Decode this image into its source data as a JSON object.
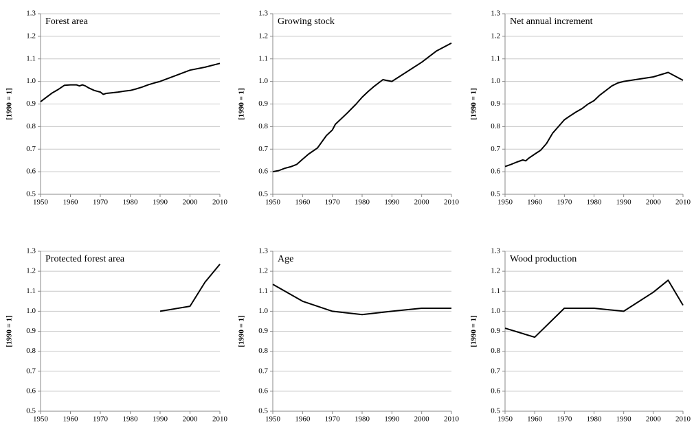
{
  "chart_data": [
    {
      "type": "line",
      "title": "Forest area",
      "ylabel": "[1990 = 1]",
      "color": "#000000",
      "grid": true,
      "x": [
        1950,
        1952,
        1954,
        1956,
        1958,
        1960,
        1962,
        1963,
        1964,
        1965,
        1966,
        1968,
        1970,
        1971,
        1972,
        1974,
        1976,
        1978,
        1980,
        1982,
        1984,
        1986,
        1988,
        1990,
        2000,
        2005,
        2010
      ],
      "values": [
        0.91,
        0.93,
        0.95,
        0.965,
        0.983,
        0.985,
        0.985,
        0.98,
        0.985,
        0.98,
        0.972,
        0.96,
        0.953,
        0.943,
        0.947,
        0.95,
        0.953,
        0.957,
        0.96,
        0.967,
        0.975,
        0.985,
        0.993,
        1.0,
        1.05,
        1.063,
        1.08
      ],
      "xlim": [
        1950,
        2010
      ],
      "ylim": [
        0.5,
        1.3
      ],
      "xticks": [
        1950,
        1960,
        1970,
        1980,
        1990,
        2000,
        2010
      ],
      "yticks": [
        0.5,
        0.6,
        0.7,
        0.8,
        0.9,
        {
          "value": 1,
          "label": "1.0"
        },
        1.1,
        1.2,
        1.3
      ]
    },
    {
      "type": "line",
      "title": "Growing stock",
      "ylabel": "[1990 = 1]",
      "color": "#000000",
      "grid": true,
      "x": [
        1950,
        1952,
        1954,
        1956,
        1958,
        1960,
        1962,
        1965,
        1968,
        1970,
        1971,
        1975,
        1978,
        1980,
        1982,
        1984,
        1987,
        1988,
        1990,
        2000,
        2005,
        2010
      ],
      "values": [
        0.6,
        0.605,
        0.615,
        0.622,
        0.632,
        0.655,
        0.678,
        0.705,
        0.76,
        0.785,
        0.81,
        0.86,
        0.9,
        0.93,
        0.955,
        0.978,
        1.008,
        1.005,
        1.0,
        1.085,
        1.135,
        1.17
      ],
      "xlim": [
        1950,
        2010
      ],
      "ylim": [
        0.5,
        1.3
      ],
      "xticks": [
        1950,
        1960,
        1970,
        1980,
        1990,
        2000,
        2010
      ],
      "yticks": [
        0.5,
        0.6,
        0.7,
        0.8,
        0.9,
        {
          "value": 1,
          "label": "1.0"
        },
        1.1,
        1.2,
        1.3
      ]
    },
    {
      "type": "line",
      "title": "Net annual increment",
      "ylabel": "[1990 = 1]",
      "color": "#000000",
      "grid": true,
      "x": [
        1950,
        1952,
        1954,
        1956,
        1957,
        1958,
        1960,
        1962,
        1964,
        1966,
        1968,
        1970,
        1972,
        1974,
        1976,
        1978,
        1980,
        1982,
        1984,
        1986,
        1988,
        1990,
        2000,
        2005,
        2010
      ],
      "values": [
        0.623,
        0.632,
        0.643,
        0.652,
        0.648,
        0.66,
        0.678,
        0.695,
        0.725,
        0.77,
        0.8,
        0.83,
        0.848,
        0.865,
        0.88,
        0.9,
        0.915,
        0.94,
        0.96,
        0.98,
        0.993,
        1.0,
        1.02,
        1.04,
        1.005
      ],
      "xlim": [
        1950,
        2010
      ],
      "ylim": [
        0.5,
        1.3
      ],
      "xticks": [
        1950,
        1960,
        1970,
        1980,
        1990,
        2000,
        2010
      ],
      "yticks": [
        0.5,
        0.6,
        0.7,
        0.8,
        0.9,
        {
          "value": 1,
          "label": "1.0"
        },
        1.1,
        1.2,
        1.3
      ]
    },
    {
      "type": "line",
      "title": "Protected forest area",
      "ylabel": "[1990 = 1]",
      "color": "#000000",
      "grid": true,
      "x": [
        1990,
        2000,
        2005,
        2010
      ],
      "values": [
        1.0,
        1.025,
        1.145,
        1.235
      ],
      "xlim": [
        1950,
        2010
      ],
      "ylim": [
        0.5,
        1.3
      ],
      "xticks": [
        1950,
        1960,
        1970,
        1980,
        1990,
        2000,
        2010
      ],
      "yticks": [
        0.5,
        0.6,
        0.7,
        0.8,
        0.9,
        {
          "value": 1,
          "label": "1.0"
        },
        1.1,
        1.2,
        1.3
      ]
    },
    {
      "type": "line",
      "title": "Age",
      "ylabel": "[1990 = 1]",
      "color": "#000000",
      "grid": true,
      "x": [
        1950,
        1960,
        1970,
        1980,
        1990,
        2000,
        2010
      ],
      "values": [
        1.135,
        1.05,
        1.0,
        0.983,
        1.0,
        1.015,
        1.015
      ],
      "xlim": [
        1950,
        2010
      ],
      "ylim": [
        0.5,
        1.3
      ],
      "xticks": [
        1950,
        1960,
        1970,
        1980,
        1990,
        2000,
        2010
      ],
      "yticks": [
        0.5,
        0.6,
        0.7,
        0.8,
        0.9,
        {
          "value": 1,
          "label": "1.0"
        },
        1.1,
        1.2,
        1.3
      ]
    },
    {
      "type": "line",
      "title": "Wood production",
      "ylabel": "[1990 = 1]",
      "color": "#000000",
      "grid": true,
      "x": [
        1950,
        1960,
        1970,
        1980,
        1990,
        2000,
        2005,
        2010
      ],
      "values": [
        0.915,
        0.87,
        1.015,
        1.015,
        1.0,
        1.095,
        1.155,
        1.03
      ],
      "xlim": [
        1950,
        2010
      ],
      "ylim": [
        0.5,
        1.3
      ],
      "xticks": [
        1950,
        1960,
        1970,
        1980,
        1990,
        2000,
        2010
      ],
      "yticks": [
        0.5,
        0.6,
        0.7,
        0.8,
        0.9,
        {
          "value": 1,
          "label": "1.0"
        },
        1.1,
        1.2,
        1.3
      ]
    }
  ]
}
